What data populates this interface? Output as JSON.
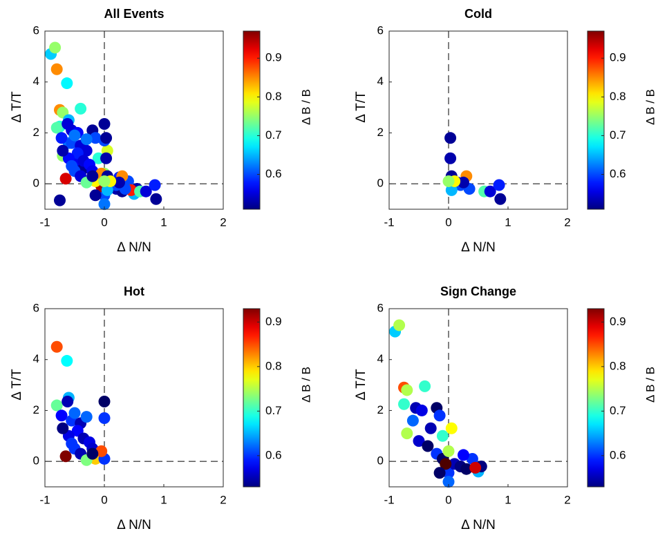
{
  "chart_data": [
    {
      "type": "scatter",
      "title": "All Events",
      "x_label": "Δ N/N",
      "y_label": "Δ T/T",
      "colorbar_label": "Δ B / B",
      "xlim": [
        -1,
        2
      ],
      "ylim": [
        -1,
        6
      ],
      "xticks": [
        -1,
        0,
        1,
        2
      ],
      "yticks": [
        0,
        2,
        4,
        6
      ],
      "ref_x": 0,
      "ref_y": 0,
      "clim": [
        0.51,
        0.97
      ],
      "cticks": [
        0.6,
        0.7,
        0.8,
        0.9
      ],
      "colormap": "jet",
      "x": [
        -0.9,
        -0.83,
        -0.75,
        -0.7,
        -0.75,
        -0.4,
        -0.55,
        -0.45,
        -0.2,
        -0.15,
        -0.6,
        -0.3,
        -0.1,
        0.05,
        -0.7,
        -0.5,
        -0.35,
        -0.2,
        -0.1,
        0,
        0,
        0.1,
        0.2,
        0.3,
        0.4,
        0.5,
        0.55,
        -0.05,
        0.25,
        0.45,
        -0.15,
        0,
        -0.8,
        -0.63,
        -0.8,
        -0.6,
        -0.62,
        -0.72,
        -0.55,
        -0.5,
        -0.4,
        -0.3,
        -0.45,
        -0.35,
        -0.25,
        -0.6,
        -0.7,
        -0.65,
        -0.5,
        -0.4,
        -0.2,
        -0.15,
        -0.3,
        0,
        0,
        0,
        -0.05,
        -0.55,
        -0.2,
        0.03,
        0.03,
        0.05,
        0.1,
        0.05,
        0.15,
        0.2,
        0.3,
        0.35,
        0.6,
        0.7,
        0.85,
        0.87,
        0.05,
        0.25,
        0.1,
        0,
        -0.75
      ],
      "values": [
        5.1,
        5.35,
        2.9,
        2.8,
        2.25,
        2.95,
        2.1,
        2.0,
        2.1,
        1.8,
        1.6,
        1.3,
        1.0,
        1.3,
        1.1,
        0.8,
        0.6,
        0.3,
        0.1,
        -0.45,
        -0.8,
        -0.1,
        -0.2,
        -0.3,
        0.1,
        -0.4,
        -0.2,
        -0.1,
        0.25,
        -0.25,
        -0.45,
        0.4,
        4.5,
        3.95,
        2.2,
        2.5,
        2.35,
        1.8,
        1.6,
        1.9,
        1.5,
        1.75,
        1.2,
        0.9,
        0.75,
        1.0,
        1.3,
        0.2,
        0.5,
        0.3,
        0.5,
        0.1,
        0.05,
        2.35,
        1.7,
        0.1,
        0.4,
        0.7,
        0.3,
        1.8,
        1.0,
        0.3,
        0.05,
        0,
        0.05,
        -0.05,
        0.3,
        -0.2,
        -0.3,
        -0.3,
        -0.05,
        -0.6,
        -0.25,
        0.05,
        0.1,
        0.1,
        -0.65
      ],
      "c": [
        0.66,
        0.75,
        0.85,
        0.75,
        0.7,
        0.7,
        0.55,
        0.57,
        0.52,
        0.6,
        0.62,
        0.55,
        0.7,
        0.78,
        0.75,
        0.56,
        0.52,
        0.6,
        0.52,
        0.6,
        0.62,
        0.55,
        0.53,
        0.52,
        0.6,
        0.65,
        0.53,
        0.95,
        0.58,
        0.9,
        0.52,
        0.75,
        0.85,
        0.68,
        0.72,
        0.65,
        0.55,
        0.58,
        0.6,
        0.62,
        0.55,
        0.62,
        0.58,
        0.55,
        0.57,
        0.57,
        0.53,
        0.93,
        0.6,
        0.55,
        0.56,
        0.8,
        0.73,
        0.52,
        0.6,
        0.6,
        0.85,
        0.6,
        0.52,
        0.52,
        0.53,
        0.52,
        0.85,
        0.7,
        0.55,
        0.6,
        0.85,
        0.6,
        0.72,
        0.55,
        0.58,
        0.52,
        0.65,
        0.53,
        0.8,
        0.75,
        0.52
      ]
    },
    {
      "type": "scatter",
      "title": "Cold",
      "x_label": "Δ N/N",
      "y_label": "Δ T/T",
      "colorbar_label": "Δ B / B",
      "xlim": [
        -1,
        2
      ],
      "ylim": [
        -1,
        6
      ],
      "xticks": [
        -1,
        0,
        1,
        2
      ],
      "yticks": [
        0,
        2,
        4,
        6
      ],
      "ref_x": 0,
      "ref_y": 0,
      "clim": [
        0.51,
        0.97
      ],
      "cticks": [
        0.6,
        0.7,
        0.8,
        0.9
      ],
      "colormap": "jet",
      "x": [
        0.03,
        0.03,
        0.05,
        0.1,
        0.05,
        0.15,
        0.2,
        0.3,
        0.35,
        0.6,
        0.7,
        0.85,
        0.87,
        0.05,
        0.25,
        0.1,
        0
      ],
      "values": [
        1.8,
        1.0,
        0.3,
        0.05,
        0,
        0.05,
        -0.05,
        0.3,
        -0.2,
        -0.3,
        -0.3,
        -0.05,
        -0.6,
        -0.25,
        0.05,
        0.1,
        0.1
      ],
      "c": [
        0.52,
        0.53,
        0.52,
        0.85,
        0.7,
        0.55,
        0.6,
        0.85,
        0.6,
        0.72,
        0.55,
        0.58,
        0.52,
        0.65,
        0.53,
        0.8,
        0.75
      ]
    },
    {
      "type": "scatter",
      "title": "Hot",
      "x_label": "Δ N/N",
      "y_label": "Δ T/T",
      "colorbar_label": "Δ B / B",
      "xlim": [
        -1,
        2
      ],
      "ylim": [
        -1,
        6
      ],
      "xticks": [
        -1,
        0,
        1,
        2
      ],
      "yticks": [
        0,
        2,
        4,
        6
      ],
      "ref_x": 0,
      "ref_y": 0,
      "clim": [
        0.53,
        0.93
      ],
      "cticks": [
        0.6,
        0.7,
        0.8,
        0.9
      ],
      "colormap": "jet",
      "x": [
        -0.8,
        -0.63,
        -0.8,
        -0.6,
        -0.62,
        -0.72,
        -0.55,
        -0.5,
        -0.4,
        -0.3,
        -0.45,
        -0.35,
        -0.25,
        -0.6,
        -0.7,
        -0.65,
        -0.5,
        -0.4,
        -0.2,
        -0.15,
        -0.3,
        0,
        0,
        0,
        -0.05,
        -0.55,
        -0.2
      ],
      "values": [
        4.5,
        3.95,
        2.2,
        2.5,
        2.35,
        1.8,
        1.6,
        1.9,
        1.5,
        1.75,
        1.2,
        0.9,
        0.75,
        1.0,
        1.3,
        0.2,
        0.5,
        0.3,
        0.5,
        0.1,
        0.05,
        2.35,
        1.7,
        0.1,
        0.4,
        0.7,
        0.3
      ],
      "c": [
        0.85,
        0.68,
        0.72,
        0.65,
        0.55,
        0.58,
        0.6,
        0.62,
        0.55,
        0.62,
        0.58,
        0.55,
        0.57,
        0.57,
        0.53,
        0.93,
        0.6,
        0.55,
        0.56,
        0.8,
        0.73,
        0.52,
        0.6,
        0.6,
        0.85,
        0.6,
        0.52
      ]
    },
    {
      "type": "scatter",
      "title": "Sign Change",
      "x_label": "Δ N/N",
      "y_label": "Δ T/T",
      "colorbar_label": "Δ B / B",
      "xlim": [
        -1,
        2
      ],
      "ylim": [
        -1,
        6
      ],
      "xticks": [
        -1,
        0,
        1,
        2
      ],
      "yticks": [
        0,
        2,
        4,
        6
      ],
      "ref_x": 0,
      "ref_y": 0,
      "clim": [
        0.53,
        0.93
      ],
      "cticks": [
        0.6,
        0.7,
        0.8,
        0.9
      ],
      "colormap": "jet",
      "x": [
        -0.9,
        -0.83,
        -0.75,
        -0.7,
        -0.75,
        -0.4,
        -0.55,
        -0.45,
        -0.2,
        -0.15,
        -0.6,
        -0.3,
        -0.1,
        0.05,
        -0.7,
        -0.5,
        -0.35,
        -0.2,
        -0.1,
        0,
        0,
        0.1,
        0.2,
        0.3,
        0.4,
        0.5,
        0.55,
        -0.05,
        0.25,
        0.45,
        -0.15,
        0
      ],
      "values": [
        5.1,
        5.35,
        2.9,
        2.8,
        2.25,
        2.95,
        2.1,
        2.0,
        2.1,
        1.8,
        1.6,
        1.3,
        1.0,
        1.3,
        1.1,
        0.8,
        0.6,
        0.3,
        0.1,
        -0.45,
        -0.8,
        -0.1,
        -0.2,
        -0.3,
        0.1,
        -0.4,
        -0.2,
        -0.1,
        0.25,
        -0.25,
        -0.45,
        0.4
      ],
      "c": [
        0.66,
        0.75,
        0.85,
        0.75,
        0.7,
        0.7,
        0.55,
        0.57,
        0.52,
        0.6,
        0.62,
        0.55,
        0.7,
        0.78,
        0.75,
        0.56,
        0.52,
        0.6,
        0.52,
        0.6,
        0.62,
        0.55,
        0.53,
        0.52,
        0.6,
        0.65,
        0.53,
        0.95,
        0.58,
        0.9,
        0.52,
        0.75
      ]
    }
  ]
}
